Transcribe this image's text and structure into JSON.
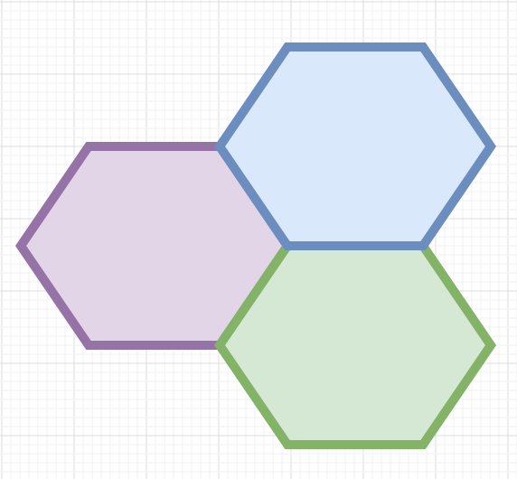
{
  "canvas": {
    "background": "#ffffff",
    "grid": {
      "enabled": true,
      "minor_color": "#f2f2f2",
      "major_color": "#dcdcdc"
    }
  },
  "shapes": [
    {
      "id": "hexagon-purple",
      "type": "hexagon",
      "fill": "#e1d5e7",
      "stroke": "#9673a6"
    },
    {
      "id": "hexagon-blue",
      "type": "hexagon",
      "fill": "#dae8fc",
      "stroke": "#6c8ebf"
    },
    {
      "id": "hexagon-green",
      "type": "hexagon",
      "fill": "#d5e8d4",
      "stroke": "#82b366"
    }
  ]
}
